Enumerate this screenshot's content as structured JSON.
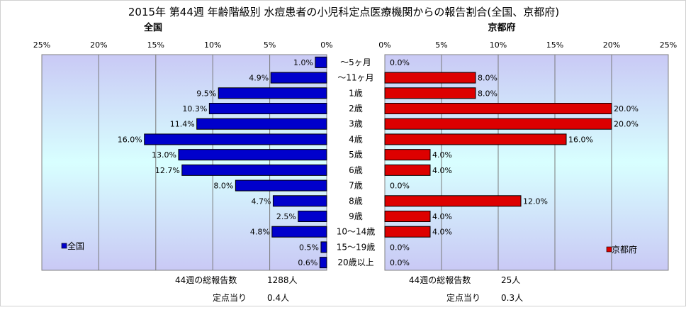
{
  "title": "2015年 第44週 年齢階級別 水痘患者の小児科定点医療機関からの報告割合(全国、京都府)",
  "chart_data": [
    {
      "type": "bar",
      "orientation": "horizontal",
      "direction": "right-to-left",
      "title": "全国",
      "xlim": [
        0,
        25
      ],
      "xticks": [
        "25%",
        "20%",
        "15%",
        "10%",
        "5%",
        "0%"
      ],
      "categories": [
        "～5ヶ月",
        "～11ヶ月",
        "1歳",
        "2歳",
        "3歳",
        "4歳",
        "5歳",
        "6歳",
        "7歳",
        "8歳",
        "9歳",
        "10～14歳",
        "15～19歳",
        "20歳以上"
      ],
      "values": [
        1.0,
        4.9,
        9.5,
        10.3,
        11.4,
        16.0,
        13.0,
        12.7,
        8.0,
        4.7,
        2.5,
        4.8,
        0.5,
        0.6
      ],
      "labels": [
        "1.0%",
        "4.9%",
        "9.5%",
        "10.3%",
        "11.4%",
        "16.0%",
        "13.0%",
        "12.7%",
        "8.0%",
        "4.7%",
        "2.5%",
        "4.8%",
        "0.5%",
        "0.6%"
      ],
      "color": "#0000cc",
      "legend": "全国",
      "legend_position": "bottom-left",
      "grid": true
    },
    {
      "type": "bar",
      "orientation": "horizontal",
      "direction": "left-to-right",
      "title": "京都府",
      "xlim": [
        0,
        25
      ],
      "xticks": [
        "0%",
        "5%",
        "10%",
        "15%",
        "20%",
        "25%"
      ],
      "categories": [
        "～5ヶ月",
        "～11ヶ月",
        "1歳",
        "2歳",
        "3歳",
        "4歳",
        "5歳",
        "6歳",
        "7歳",
        "8歳",
        "9歳",
        "10～14歳",
        "15～19歳",
        "20歳以上"
      ],
      "values": [
        0.0,
        8.0,
        8.0,
        20.0,
        20.0,
        16.0,
        4.0,
        4.0,
        0.0,
        12.0,
        4.0,
        4.0,
        0.0,
        0.0
      ],
      "labels": [
        "0.0%",
        "8.0%",
        "8.0%",
        "20.0%",
        "20.0%",
        "16.0%",
        "4.0%",
        "4.0%",
        "0.0%",
        "12.0%",
        "4.0%",
        "4.0%",
        "0.0%",
        "0.0%"
      ],
      "color": "#dd0000",
      "legend": "京都府",
      "legend_position": "bottom-right",
      "grid": true
    }
  ],
  "footer": {
    "national": {
      "total_label": "44週の総報告数",
      "total_value": "1288人",
      "per_label": "定点当り",
      "per_value": "0.4人"
    },
    "kyoto": {
      "total_label": "44週の総報告数",
      "total_value": "25人",
      "per_label": "定点当り",
      "per_value": "0.3人"
    }
  }
}
